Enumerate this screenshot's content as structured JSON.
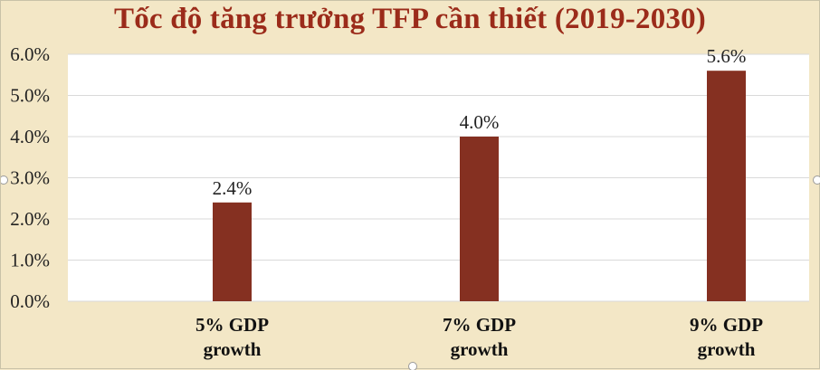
{
  "chart_data": {
    "type": "bar",
    "title": "Tốc độ tăng trưởng TFP cần thiết (2019-2030)",
    "categories": [
      [
        "5% GDP",
        "growth"
      ],
      [
        "7% GDP",
        "growth"
      ],
      [
        "9% GDP",
        "growth"
      ]
    ],
    "values": [
      2.4,
      4.0,
      5.6
    ],
    "data_labels": [
      "2.4%",
      "4.0%",
      "5.6%"
    ],
    "yticks": [
      "0.0%",
      "1.0%",
      "2.0%",
      "3.0%",
      "4.0%",
      "5.0%",
      "6.0%"
    ],
    "ylim": [
      0,
      6
    ],
    "grid": true,
    "colors": {
      "bar": "#853021",
      "background": "#f3e7c6",
      "plot": "#ffffff",
      "title": "#9b2b1a"
    }
  }
}
